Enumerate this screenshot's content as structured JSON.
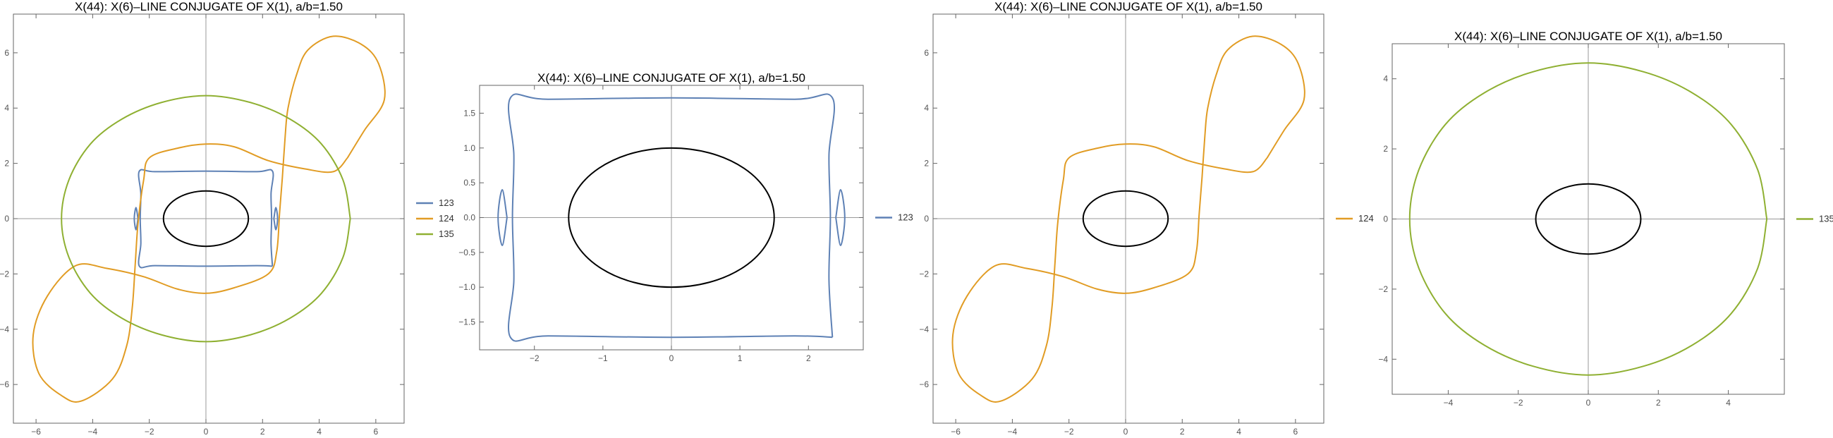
{
  "chart_data": [
    {
      "type": "line",
      "title": "X(44): X(6)–LINE CONJUGATE OF X(1), a/b=1.50",
      "xlim": [
        -6.8,
        7.0
      ],
      "ylim": [
        -7.4,
        7.4
      ],
      "xticks": [
        -6,
        -4,
        -2,
        0,
        2,
        4,
        6
      ],
      "yticks": [
        -6,
        -4,
        -2,
        0,
        2,
        4,
        6
      ],
      "tick_labels": {
        "x": [
          "−6",
          "−4",
          "−2",
          "0",
          "2",
          "4",
          "6"
        ],
        "y": [
          "−6",
          "−4",
          "−2",
          "0",
          "2",
          "4",
          "6"
        ]
      },
      "ellipse": {
        "a": 1.5,
        "b": 1.0,
        "color": "#000000"
      },
      "series": [
        {
          "name": "123",
          "color": "#5e81b5"
        },
        {
          "name": "124",
          "color": "#e19c24"
        },
        {
          "name": "135",
          "color": "#8fb032"
        }
      ],
      "legend": "right"
    },
    {
      "type": "line",
      "title": "X(44): X(6)–LINE CONJUGATE OF X(1), a/b=1.50",
      "xlim": [
        -2.8,
        2.8
      ],
      "ylim": [
        -1.9,
        1.9
      ],
      "xticks": [
        -2,
        -1,
        0,
        1,
        2
      ],
      "yticks": [
        -1.5,
        -1.0,
        -0.5,
        0.0,
        0.5,
        1.0,
        1.5
      ],
      "tick_labels": {
        "x": [
          "−2",
          "−1",
          "0",
          "1",
          "2"
        ],
        "y": [
          "−1.5",
          "−1.0",
          "−0.5",
          "0.0",
          "0.5",
          "1.0",
          "1.5"
        ]
      },
      "ellipse": {
        "a": 1.5,
        "b": 1.0,
        "color": "#000000"
      },
      "series": [
        {
          "name": "123",
          "color": "#5e81b5"
        }
      ],
      "legend": "right"
    },
    {
      "type": "line",
      "title": "X(44): X(6)–LINE CONJUGATE OF X(1), a/b=1.50",
      "xlim": [
        -6.8,
        7.0
      ],
      "ylim": [
        -7.4,
        7.4
      ],
      "xticks": [
        -6,
        -4,
        -2,
        0,
        2,
        4,
        6
      ],
      "yticks": [
        -6,
        -4,
        -2,
        0,
        2,
        4,
        6
      ],
      "tick_labels": {
        "x": [
          "−6",
          "−4",
          "−2",
          "0",
          "2",
          "4",
          "6"
        ],
        "y": [
          "−6",
          "−4",
          "−2",
          "0",
          "2",
          "4",
          "6"
        ]
      },
      "ellipse": {
        "a": 1.5,
        "b": 1.0,
        "color": "#000000"
      },
      "series": [
        {
          "name": "124",
          "color": "#e19c24"
        }
      ],
      "legend": "right"
    },
    {
      "type": "line",
      "title": "X(44): X(6)–LINE CONJUGATE OF X(1), a/b=1.50",
      "xlim": [
        -5.6,
        5.6
      ],
      "ylim": [
        -5.0,
        5.0
      ],
      "xticks": [
        -4,
        -2,
        0,
        2,
        4
      ],
      "yticks": [
        -4,
        -2,
        0,
        2,
        4
      ],
      "tick_labels": {
        "x": [
          "−4",
          "−2",
          "0",
          "2",
          "4"
        ],
        "y": [
          "−4",
          "−2",
          "0",
          "2",
          "4"
        ]
      },
      "ellipse": {
        "a": 1.5,
        "b": 1.0,
        "color": "#000000"
      },
      "series": [
        {
          "name": "135",
          "color": "#8fb032"
        }
      ],
      "legend": "right"
    }
  ]
}
